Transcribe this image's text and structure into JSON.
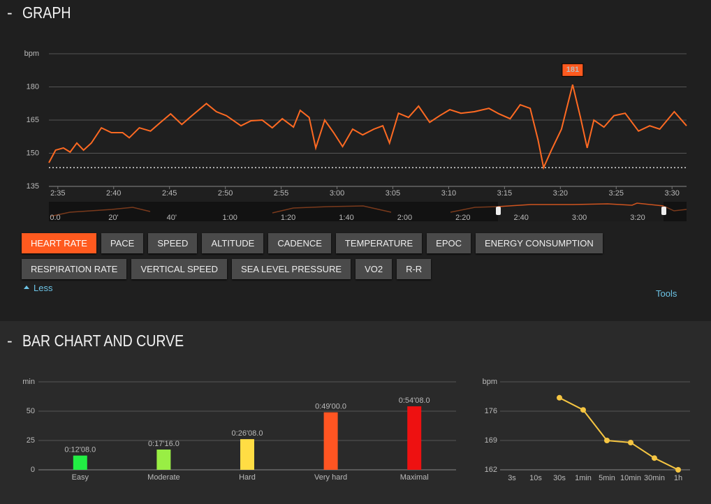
{
  "sections": [
    {
      "title": "GRAPH"
    },
    {
      "title": "BAR CHART AND CURVE"
    }
  ],
  "buttons": [
    "HEART RATE",
    "PACE",
    "SPEED",
    "ALTITUDE",
    "CADENCE",
    "TEMPERATURE",
    "EPOC",
    "ENERGY CONSUMPTION",
    "RESPIRATION RATE",
    "VERTICAL SPEED",
    "SEA LEVEL PRESSURE",
    "VO2",
    "R-R"
  ],
  "less": "Less",
  "tools": "Tools",
  "navigator": {
    "labels": [
      "0.0",
      "20'",
      "40'",
      "1:00",
      "1:20",
      "1:40",
      "2:00",
      "2:20",
      "2:40",
      "3:00",
      "3:20"
    ]
  },
  "chart_data": [
    {
      "type": "line",
      "y_label": "bpm",
      "x": [
        154.2,
        154.8,
        155.5,
        156.1,
        156.7,
        157.3,
        158.0,
        158.9,
        159.8,
        160.8,
        161.4,
        162.3,
        163.3,
        164.2,
        165.1,
        166.1,
        167.0,
        168.3,
        169.2,
        170.1,
        171.4,
        172.3,
        173.3,
        174.2,
        175.1,
        176.1,
        176.7,
        177.5,
        178.1,
        178.9,
        179.7,
        180.5,
        181.4,
        182.3,
        183.3,
        184.1,
        184.7,
        185.5,
        186.4,
        187.3,
        188.3,
        189.2,
        190.1,
        191.1,
        192.3,
        193.6,
        194.5,
        195.5,
        196.4,
        197.3,
        198.0,
        198.5,
        199.2,
        200.1,
        201.1,
        201.8,
        202.4,
        203.0,
        203.9,
        204.8,
        205.8,
        207.0,
        208.0,
        208.9,
        210.2,
        211.3
      ],
      "series": [
        {
          "name": "HEART RATE",
          "color": "#ff6a22",
          "values": [
            145.7,
            151.4,
            152.4,
            150.5,
            154.6,
            151.4,
            154.6,
            161.5,
            159.3,
            159.3,
            157,
            161.5,
            160,
            164,
            167.8,
            163,
            167,
            172.5,
            168.8,
            167,
            162.4,
            164.7,
            165,
            161.5,
            165.6,
            161.8,
            169.4,
            166.2,
            152.4,
            165,
            159.3,
            153,
            160.9,
            158.3,
            160.9,
            162.4,
            154.6,
            168.1,
            166.2,
            171.3,
            164,
            167,
            169.7,
            168.1,
            168.8,
            170.3,
            167.8,
            165.6,
            171.9,
            170.3,
            156.1,
            143.5,
            151.4,
            160.9,
            181,
            166.2,
            152.4,
            165,
            161.8,
            167,
            168.1,
            160,
            162.4,
            160.9,
            168.8,
            162.4
          ]
        }
      ],
      "xlim": [
        154.2,
        211.3
      ],
      "xticks": [
        {
          "value": 155,
          "label": "2:35"
        },
        {
          "value": 160,
          "label": "2:40"
        },
        {
          "value": 165,
          "label": "2:45"
        },
        {
          "value": 170,
          "label": "2:50"
        },
        {
          "value": 175,
          "label": "2:55"
        },
        {
          "value": 180,
          "label": "3:00"
        },
        {
          "value": 185,
          "label": "3:05"
        },
        {
          "value": 190,
          "label": "3:10"
        },
        {
          "value": 195,
          "label": "3:15"
        },
        {
          "value": 200,
          "label": "3:20"
        },
        {
          "value": 205,
          "label": "3:25"
        },
        {
          "value": 210,
          "label": "3:30"
        }
      ],
      "ylim": [
        135,
        195
      ],
      "yticks": [
        135,
        150,
        165,
        180
      ],
      "reference_line": 143.5,
      "annotations": [
        {
          "x": 201.1,
          "value": 181
        }
      ],
      "grid": true
    },
    {
      "type": "bar",
      "y_label": "min",
      "categories": [
        "Easy",
        "Moderate",
        "Hard",
        "Very hard",
        "Maximal"
      ],
      "values": [
        12.1333,
        17.2667,
        26.1333,
        49,
        54.1333
      ],
      "value_labels": [
        "0:12'08.0",
        "0:17'16.0",
        "0:26'08.0",
        "0:49'00.0",
        "0:54'08.0"
      ],
      "colors": [
        "#22ee44",
        "#99ee44",
        "#ffdd44",
        "#ff5522",
        "#ee1111"
      ],
      "ylim": [
        0,
        75
      ],
      "yticks": [
        0,
        25,
        50
      ],
      "grid": true
    },
    {
      "type": "line",
      "y_label": "bpm",
      "categories": [
        "3s",
        "10s",
        "30s",
        "1min",
        "5min",
        "10min",
        "30min",
        "1h"
      ],
      "series": [
        {
          "name": "bpm",
          "color": "#f5c542",
          "values": [
            null,
            null,
            179.2,
            176.3,
            169,
            168.5,
            164.8,
            162
          ]
        }
      ],
      "ylim": [
        162,
        183
      ],
      "yticks": [
        162,
        169,
        176
      ],
      "grid": true
    }
  ]
}
